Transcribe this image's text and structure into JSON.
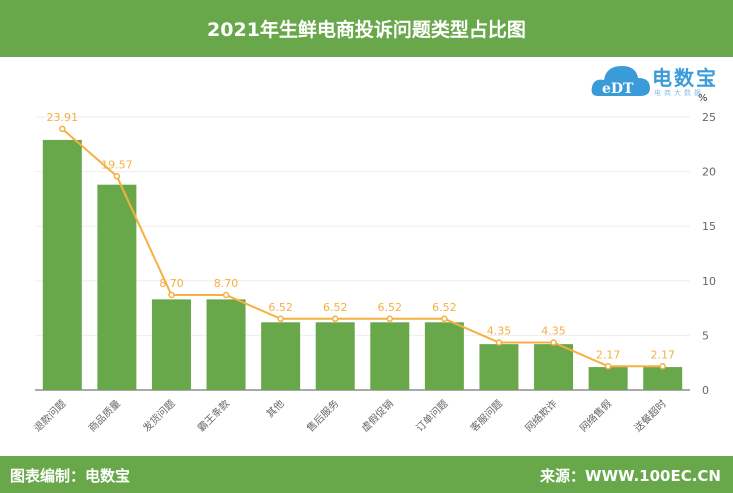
{
  "header": {
    "title": "2021年生鲜电商投诉问题类型占比图"
  },
  "footer": {
    "left": "图表编制：电数宝",
    "right": "来源：WWW.100EC.CN"
  },
  "logo": {
    "name": "电数宝",
    "sub": "电商大数据",
    "mark": "eDT"
  },
  "chart_data": {
    "type": "bar",
    "title": "",
    "ylabel": "%",
    "ylim": [
      0,
      25
    ],
    "yticks": [
      0,
      5,
      10,
      15,
      20,
      25
    ],
    "grid": true,
    "categories": [
      "退款问题",
      "商品质量",
      "发货问题",
      "霸王条款",
      "其他",
      "售后服务",
      "虚假促销",
      "订单问题",
      "客服问题",
      "网络欺诈",
      "网络售假",
      "送餐超时"
    ],
    "series": [
      {
        "type": "bar",
        "values": [
          22.9,
          18.8,
          8.3,
          8.3,
          6.2,
          6.2,
          6.2,
          6.2,
          4.2,
          4.2,
          2.1,
          2.1
        ],
        "color": "#68a84a"
      },
      {
        "type": "line",
        "values": [
          23.91,
          19.57,
          8.7,
          8.7,
          6.52,
          6.52,
          6.52,
          6.52,
          4.35,
          4.35,
          2.17,
          2.17
        ],
        "labels": [
          "23.91",
          "19.57",
          "8.70",
          "8.70",
          "6.52",
          "6.52",
          "6.52",
          "6.52",
          "4.35",
          "4.35",
          "2.17",
          "2.17"
        ],
        "color": "#f5b041"
      }
    ]
  }
}
